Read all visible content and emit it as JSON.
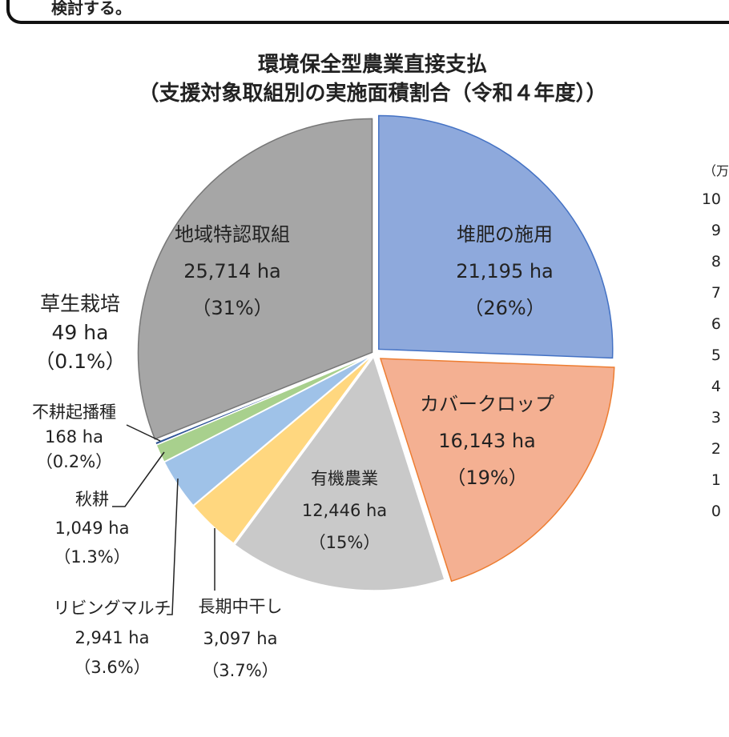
{
  "header_note": "検討する。",
  "chart_data": {
    "type": "pie",
    "title": "環境保全型農業直接支払",
    "subtitle": "（支援対象取組別の実施面積割合（令和４年度））",
    "unit": "ha",
    "slices": [
      {
        "name": "堆肥の施用",
        "value": 21195,
        "value_label": "21,195 ha",
        "pct": "（26%）",
        "color": "#8ea9dc"
      },
      {
        "name": "カバークロップ",
        "value": 16143,
        "value_label": "16,143 ha",
        "pct": "（19%）",
        "color": "#f4b092"
      },
      {
        "name": "有機農業",
        "value": 12446,
        "value_label": "12,446 ha",
        "pct": "（15%）",
        "color": "#c9c9c9"
      },
      {
        "name": "長期中干し",
        "value": 3097,
        "value_label": "3,097 ha",
        "pct": "（3.7%）",
        "color": "#ffd77f"
      },
      {
        "name": "リビングマルチ",
        "value": 2941,
        "value_label": "2,941 ha",
        "pct": "（3.6%）",
        "color": "#9fc2e8"
      },
      {
        "name": "秋耕",
        "value": 1049,
        "value_label": "1,049 ha",
        "pct": "（1.3%）",
        "color": "#a8d08d"
      },
      {
        "name": "不耕起播種",
        "value": 168,
        "value_label": "168 ha",
        "pct": "（0.2%）",
        "color": "#2f5597"
      },
      {
        "name": "草生栽培",
        "value": 49,
        "value_label": "49 ha",
        "pct": "（0.1%）",
        "color": "#c55a11"
      },
      {
        "name": "地域特認取組",
        "value": 25714,
        "value_label": "25,714 ha",
        "pct": "（31%）",
        "color": "#a6a6a6"
      }
    ]
  },
  "side_axis": {
    "unit_fragment": "（万",
    "ticks": [
      "10",
      "9",
      "8",
      "7",
      "6",
      "5",
      "4",
      "3",
      "2",
      "1",
      "0"
    ]
  }
}
